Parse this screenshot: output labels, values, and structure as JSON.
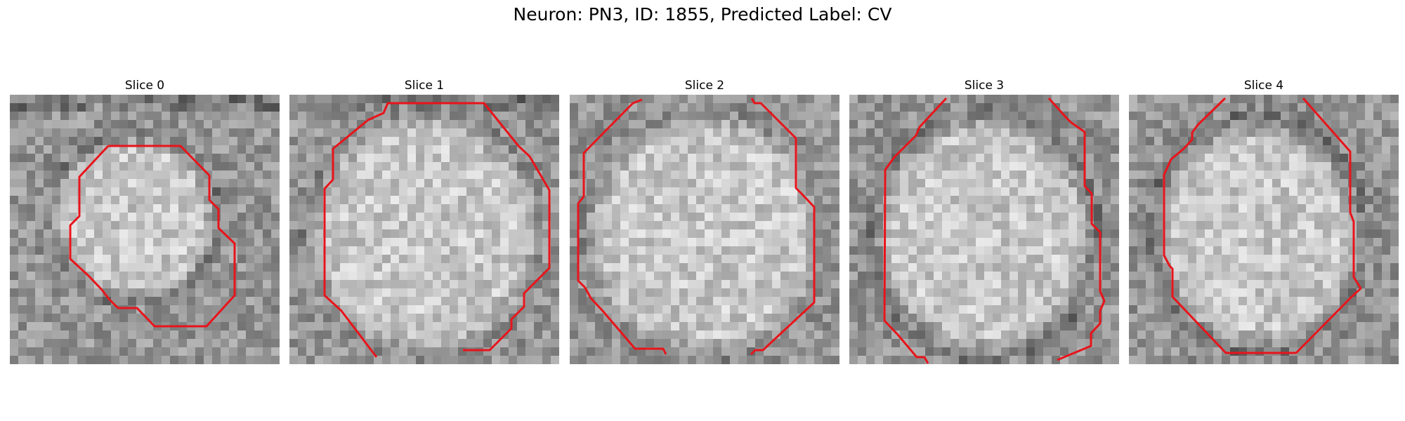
{
  "figure": {
    "title": "Neuron: PN3, ID: 1855, Predicted Label: CV",
    "panels": [
      {
        "label": "Slice 0"
      },
      {
        "label": "Slice 1"
      },
      {
        "label": "Slice 2"
      },
      {
        "label": "Slice 3"
      },
      {
        "label": "Slice 4"
      }
    ],
    "overlay_color": "#e8141b"
  }
}
